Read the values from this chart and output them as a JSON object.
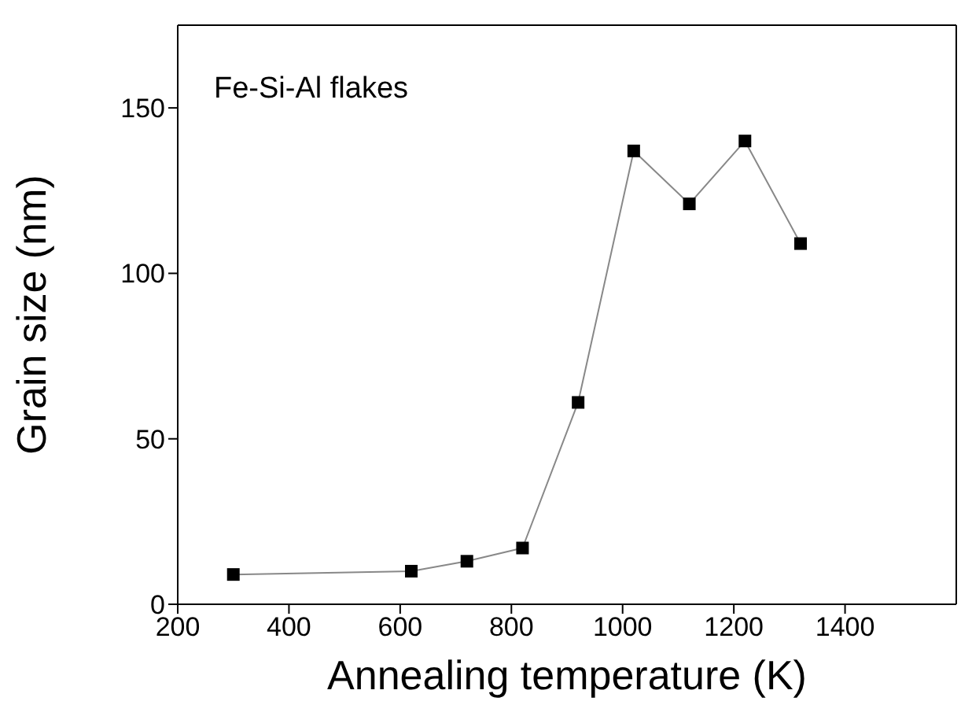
{
  "chart_data": {
    "type": "line",
    "xlabel": "Annealing temperature (K)",
    "ylabel": "Grain size (nm)",
    "annotations": [
      "Fe-Si-Al flakes"
    ],
    "x": [
      300,
      620,
      720,
      820,
      920,
      1020,
      1120,
      1220,
      1320
    ],
    "series": [
      {
        "color": "#000000",
        "values": [
          9,
          10,
          13,
          17,
          61,
          137,
          121,
          140,
          109
        ]
      }
    ],
    "xlim": [
      200,
      1600
    ],
    "xticks": [
      200,
      400,
      600,
      800,
      1000,
      1200,
      1400
    ],
    "ylim": [
      0,
      175
    ],
    "yticks": [
      0,
      50,
      100,
      150
    ],
    "marker": "square",
    "line_style": "solid"
  }
}
